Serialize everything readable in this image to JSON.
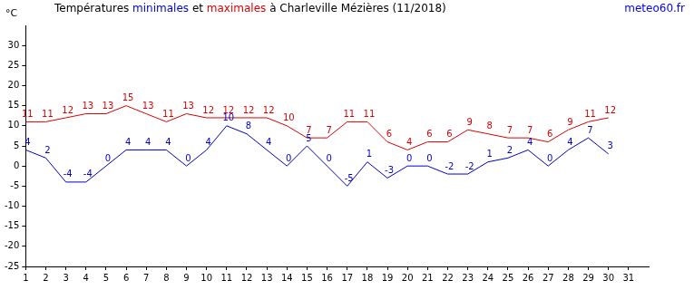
{
  "chart_data": {
    "type": "line",
    "title": "Températures minimales et maximales à Charleville Mézières (11/2018)",
    "source": "meteo60.fr",
    "ylabel": "°C",
    "x": [
      1,
      2,
      3,
      4,
      5,
      6,
      7,
      8,
      9,
      10,
      11,
      12,
      13,
      14,
      15,
      16,
      17,
      18,
      19,
      20,
      21,
      22,
      23,
      24,
      25,
      26,
      27,
      28,
      29,
      30
    ],
    "series": [
      {
        "name": "minimales",
        "color": "#0000cc",
        "values": [
          4,
          2,
          -4,
          -4,
          0,
          4,
          4,
          4,
          0,
          4,
          10,
          8,
          4,
          0,
          5,
          0,
          -5,
          1,
          -3,
          0,
          0,
          -2,
          -2,
          1,
          2,
          4,
          0,
          4,
          7,
          3
        ]
      },
      {
        "name": "maximales",
        "color": "#dd0000",
        "values": [
          11,
          11,
          12,
          13,
          13,
          15,
          13,
          11,
          13,
          12,
          12,
          12,
          12,
          10,
          7,
          7,
          11,
          11,
          6,
          4,
          6,
          6,
          9,
          8,
          7,
          7,
          6,
          9,
          11,
          12
        ]
      }
    ],
    "xlim": [
      1,
      32
    ],
    "xticks": [
      1,
      2,
      3,
      4,
      5,
      6,
      7,
      8,
      9,
      10,
      11,
      12,
      13,
      14,
      15,
      16,
      17,
      18,
      19,
      20,
      21,
      22,
      23,
      24,
      25,
      26,
      27,
      28,
      29,
      30,
      31
    ],
    "ylim": [
      -25,
      35
    ],
    "yticks": [
      -25,
      -20,
      -15,
      -10,
      -5,
      0,
      5,
      10,
      15,
      20,
      25,
      30
    ],
    "grid": false,
    "data_labels": true
  }
}
